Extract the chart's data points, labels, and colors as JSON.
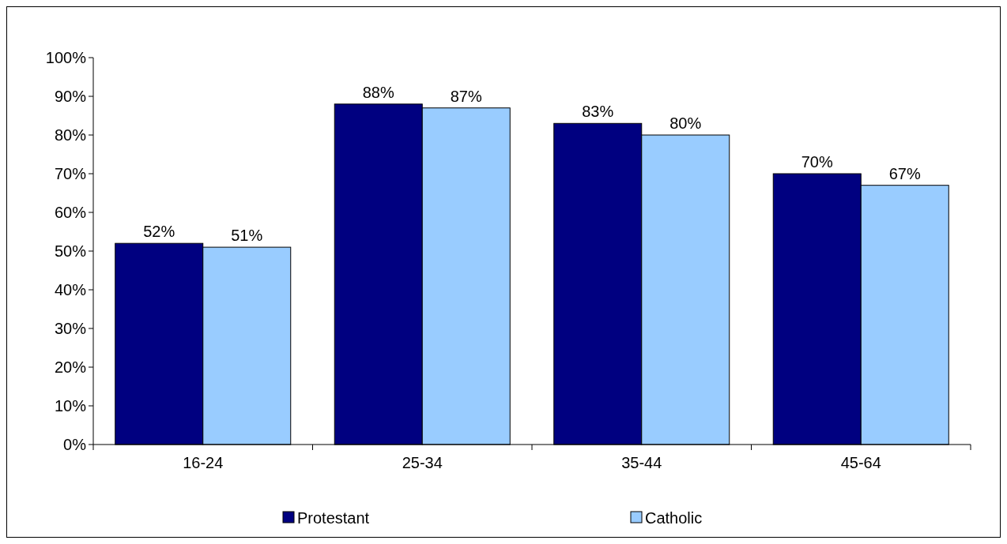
{
  "chart_data": {
    "type": "bar",
    "categories": [
      "16-24",
      "25-34",
      "35-44",
      "45-64"
    ],
    "series": [
      {
        "name": "Protestant",
        "color": "#000080",
        "values": [
          52,
          88,
          83,
          70
        ],
        "value_labels": [
          "52%",
          "88%",
          "83%",
          "70%"
        ]
      },
      {
        "name": "Catholic",
        "color": "#99ccff",
        "values": [
          51,
          87,
          80,
          67
        ],
        "value_labels": [
          "51%",
          "87%",
          "80%",
          "67%"
        ]
      }
    ],
    "ylim": [
      0,
      100
    ],
    "yticks": [
      {
        "value": 0,
        "label": "0%"
      },
      {
        "value": 10,
        "label": "10%"
      },
      {
        "value": 20,
        "label": "20%"
      },
      {
        "value": 30,
        "label": "30%"
      },
      {
        "value": 40,
        "label": "40%"
      },
      {
        "value": 50,
        "label": "50%"
      },
      {
        "value": 60,
        "label": "60%"
      },
      {
        "value": 70,
        "label": "70%"
      },
      {
        "value": 80,
        "label": "80%"
      },
      {
        "value": 90,
        "label": "90%"
      },
      {
        "value": 100,
        "label": "100%"
      }
    ],
    "legend": "bottom",
    "grid": false
  }
}
